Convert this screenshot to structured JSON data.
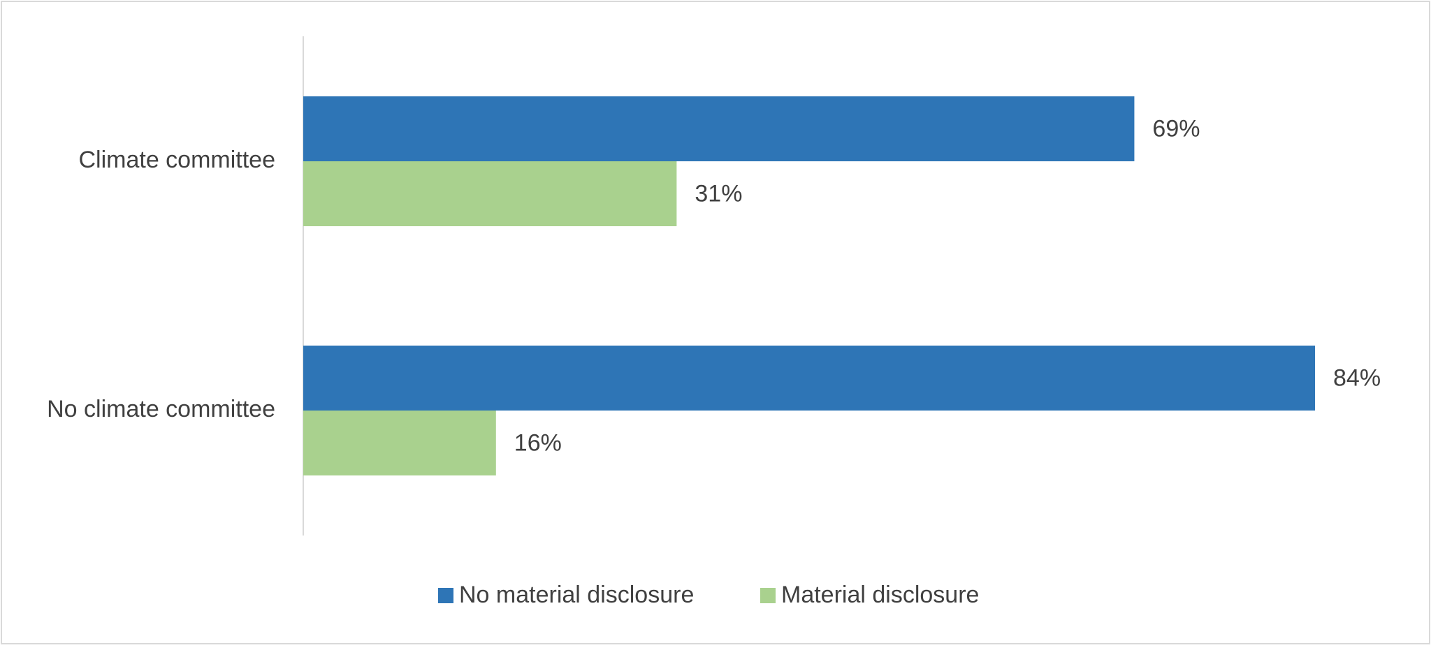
{
  "chart_data": {
    "type": "bar",
    "orientation": "horizontal",
    "categories": [
      "Climate committee",
      "No climate committee"
    ],
    "series": [
      {
        "name": "No material disclosure",
        "color": "#2e75b6",
        "values": [
          69,
          84
        ],
        "value_labels": [
          "69%",
          "84%"
        ]
      },
      {
        "name": "Material disclosure",
        "color": "#a9d18e",
        "values": [
          31,
          16
        ],
        "value_labels": [
          "31%",
          "16%"
        ]
      }
    ],
    "legend": "bottom"
  }
}
